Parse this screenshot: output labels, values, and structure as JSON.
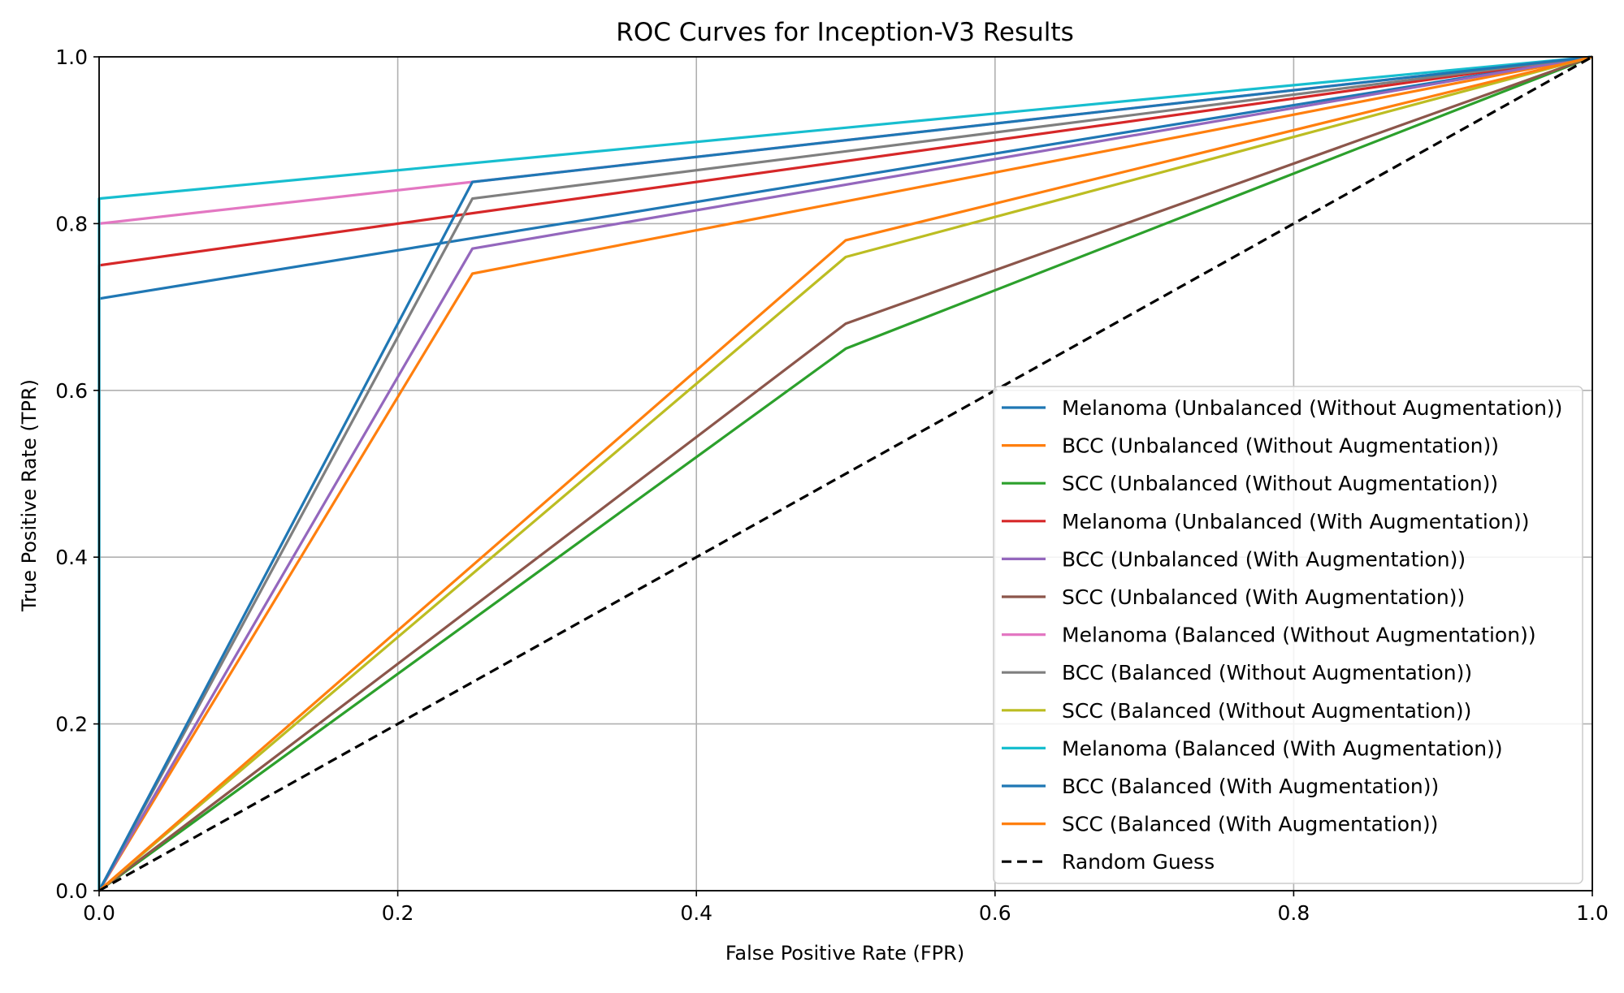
{
  "chart_data": {
    "type": "line",
    "title": "ROC Curves for Inception-V3 Results",
    "xlabel": "False Positive Rate (FPR)",
    "ylabel": "True Positive Rate (TPR)",
    "xlim": [
      0.0,
      1.0
    ],
    "ylim": [
      0.0,
      1.0
    ],
    "xticks": [
      "0.0",
      "0.2",
      "0.4",
      "0.6",
      "0.8",
      "1.0"
    ],
    "yticks": [
      "0.0",
      "0.2",
      "0.4",
      "0.6",
      "0.8",
      "1.0"
    ],
    "grid": true,
    "legend_position": "lower-right",
    "series": [
      {
        "name": "Melanoma (Unbalanced (Without Augmentation))",
        "color": "#1f77b4",
        "x": [
          0.0,
          0.0,
          1.0
        ],
        "y": [
          0.0,
          0.71,
          1.0
        ]
      },
      {
        "name": "BCC (Unbalanced (Without Augmentation))",
        "color": "#ff7f0e",
        "x": [
          0.0,
          0.25,
          1.0
        ],
        "y": [
          0.0,
          0.74,
          1.0
        ]
      },
      {
        "name": "SCC (Unbalanced (Without Augmentation))",
        "color": "#2ca02c",
        "x": [
          0.0,
          0.5,
          1.0
        ],
        "y": [
          0.0,
          0.65,
          1.0
        ]
      },
      {
        "name": "Melanoma (Unbalanced (With Augmentation))",
        "color": "#d62728",
        "x": [
          0.0,
          0.0,
          1.0
        ],
        "y": [
          0.0,
          0.75,
          1.0
        ]
      },
      {
        "name": "BCC (Unbalanced (With Augmentation))",
        "color": "#9467bd",
        "x": [
          0.0,
          0.25,
          1.0
        ],
        "y": [
          0.0,
          0.77,
          1.0
        ]
      },
      {
        "name": "SCC (Unbalanced (With Augmentation))",
        "color": "#8c564b",
        "x": [
          0.0,
          0.5,
          1.0
        ],
        "y": [
          0.0,
          0.68,
          1.0
        ]
      },
      {
        "name": "Melanoma (Balanced (Without Augmentation))",
        "color": "#e377c2",
        "x": [
          0.0,
          0.0,
          1.0
        ],
        "y": [
          0.0,
          0.8,
          1.0
        ]
      },
      {
        "name": "BCC (Balanced (Without Augmentation))",
        "color": "#7f7f7f",
        "x": [
          0.0,
          0.25,
          1.0
        ],
        "y": [
          0.0,
          0.83,
          1.0
        ]
      },
      {
        "name": "SCC (Balanced (Without Augmentation))",
        "color": "#bcbd22",
        "x": [
          0.0,
          0.5,
          1.0
        ],
        "y": [
          0.0,
          0.76,
          1.0
        ]
      },
      {
        "name": "Melanoma (Balanced (With Augmentation))",
        "color": "#17becf",
        "x": [
          0.0,
          0.0,
          1.0
        ],
        "y": [
          0.0,
          0.83,
          1.0
        ]
      },
      {
        "name": "BCC (Balanced (With Augmentation))",
        "color": "#1f77b4",
        "x": [
          0.0,
          0.25,
          1.0
        ],
        "y": [
          0.0,
          0.85,
          1.0
        ]
      },
      {
        "name": "SCC (Balanced (With Augmentation))",
        "color": "#ff7f0e",
        "x": [
          0.0,
          0.5,
          1.0
        ],
        "y": [
          0.0,
          0.78,
          1.0
        ]
      },
      {
        "name": "Random Guess",
        "color": "#000000",
        "dashed": true,
        "x": [
          0.0,
          1.0
        ],
        "y": [
          0.0,
          1.0
        ]
      }
    ]
  }
}
